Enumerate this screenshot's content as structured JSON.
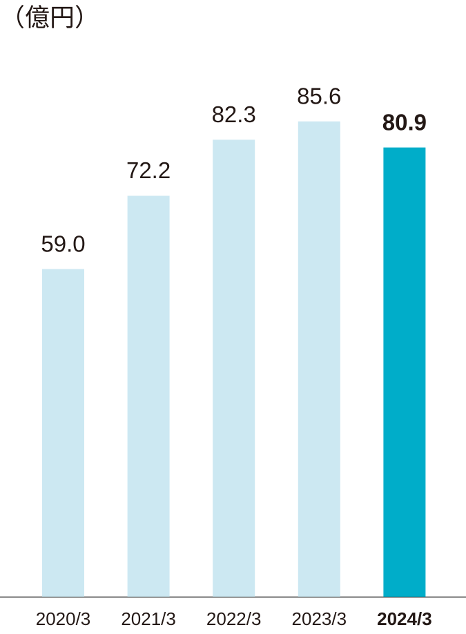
{
  "chart_data": {
    "type": "bar",
    "title": "（億円）",
    "categories": [
      "2020/3",
      "2021/3",
      "2022/3",
      "2023/3",
      "2024/3"
    ],
    "values": [
      59.0,
      72.2,
      82.3,
      85.6,
      80.9
    ],
    "value_labels": [
      "59.0",
      "72.2",
      "82.3",
      "85.6",
      "80.9"
    ],
    "colors": [
      "#cce8f2",
      "#cce8f2",
      "#cce8f2",
      "#cce8f2",
      "#00adc9"
    ]
  }
}
